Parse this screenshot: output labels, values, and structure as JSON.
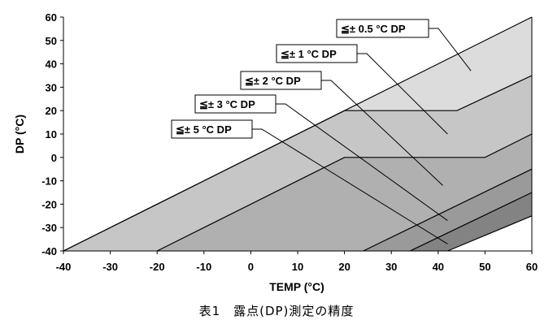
{
  "caption": "表1　露点(DP)測定の精度",
  "chart_data": {
    "type": "area",
    "xlabel": "TEMP (°C)",
    "ylabel": "DP (°C)",
    "xlim": [
      -40,
      60
    ],
    "ylim": [
      -40,
      60
    ],
    "xticks": [
      -40,
      -30,
      -20,
      -10,
      0,
      10,
      20,
      30,
      40,
      50,
      60
    ],
    "yticks": [
      -40,
      -30,
      -20,
      -10,
      0,
      10,
      20,
      30,
      40,
      50,
      60
    ],
    "grid": false,
    "series": [
      {
        "name": "≦± 0.5 °C DP",
        "color": "#dcdcdc",
        "upper": [
          [
            -40,
            -40
          ],
          [
            60,
            60
          ]
        ],
        "lower": [
          [
            -40,
            -40
          ],
          [
            20,
            20
          ],
          [
            44,
            20
          ],
          [
            60,
            35
          ]
        ]
      },
      {
        "name": "≦± 1 °C DP",
        "color": "#c6c6c6",
        "upper": [
          [
            -40,
            -40
          ],
          [
            20,
            20
          ],
          [
            44,
            20
          ],
          [
            60,
            35
          ]
        ],
        "lower": [
          [
            -20,
            -40
          ],
          [
            20,
            0
          ],
          [
            50,
            0
          ],
          [
            60,
            10
          ]
        ]
      },
      {
        "name": "≦± 2 °C DP",
        "color": "#b0b0b0",
        "upper": [
          [
            -20,
            -40
          ],
          [
            20,
            0
          ],
          [
            50,
            0
          ],
          [
            60,
            10
          ]
        ],
        "lower": [
          [
            24,
            -40
          ],
          [
            60,
            -5
          ]
        ]
      },
      {
        "name": "≦± 3 °C DP",
        "color": "#9a9a9a",
        "upper": [
          [
            24,
            -40
          ],
          [
            60,
            -5
          ]
        ],
        "lower": [
          [
            34,
            -40
          ],
          [
            60,
            -15
          ]
        ]
      },
      {
        "name": "≦± 5 °C DP",
        "color": "#838383",
        "upper": [
          [
            34,
            -40
          ],
          [
            60,
            -15
          ]
        ],
        "lower": [
          [
            42,
            -40
          ],
          [
            60,
            -25
          ]
        ]
      }
    ],
    "annotations": [
      {
        "label": "≦± 0.5 °C DP",
        "point": [
          47,
          37
        ]
      },
      {
        "label": "≦± 1 °C DP",
        "point": [
          42,
          10
        ]
      },
      {
        "label": "≦± 2 °C DP",
        "point": [
          41,
          -12
        ]
      },
      {
        "label": "≦± 3 °C DP",
        "point": [
          42,
          -27
        ]
      },
      {
        "label": "≦± 5 °C DP",
        "point": [
          42,
          -37
        ]
      }
    ]
  }
}
